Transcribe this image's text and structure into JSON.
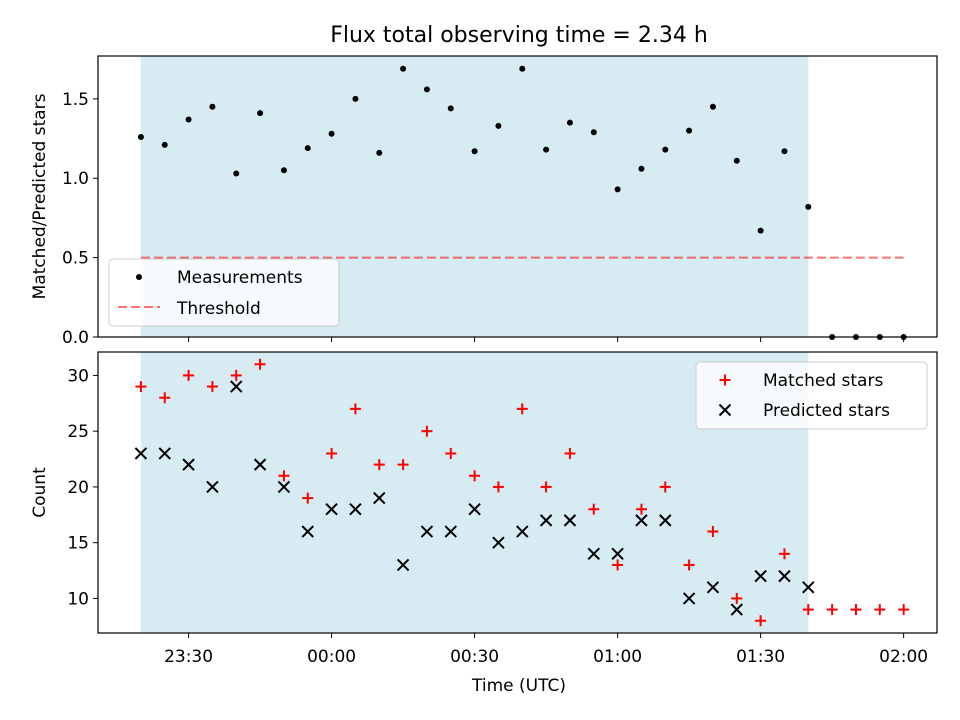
{
  "figure": {
    "title": "Flux total observing time = 2.34 h",
    "xlabel": "Time (UTC)"
  },
  "colors": {
    "shade": "#add8e6",
    "threshold": "#ff0000",
    "matched": "#ff0000",
    "predicted": "#000000",
    "measurement": "#000000"
  },
  "chart_data": [
    {
      "type": "scatter",
      "panel": "top",
      "ylabel": "Matched/Predicted stars",
      "xlim": [
        "23:11",
        "02:07"
      ],
      "ylim": [
        0,
        1.77
      ],
      "yticks": [
        0.0,
        0.5,
        1.0,
        1.5
      ],
      "ytick_labels": [
        "0.0",
        "0.5",
        "1.0",
        "1.5"
      ],
      "legend_position": "lower-left",
      "shaded_interval": [
        "23:20",
        "01:40"
      ],
      "x": [
        "23:20",
        "23:25",
        "23:30",
        "23:35",
        "23:40",
        "23:45",
        "23:50",
        "23:55",
        "00:00",
        "00:05",
        "00:10",
        "00:15",
        "00:20",
        "00:25",
        "00:30",
        "00:35",
        "00:40",
        "00:45",
        "00:50",
        "00:55",
        "01:00",
        "01:05",
        "01:10",
        "01:15",
        "01:20",
        "01:25",
        "01:30",
        "01:35",
        "01:40",
        "01:45",
        "01:50",
        "01:55",
        "02:00"
      ],
      "series": [
        {
          "name": "Measurements",
          "marker": "dot",
          "values": [
            1.26,
            1.21,
            1.37,
            1.45,
            1.03,
            1.41,
            1.05,
            1.19,
            1.28,
            1.5,
            1.16,
            1.69,
            1.56,
            1.44,
            1.17,
            1.33,
            1.69,
            1.18,
            1.35,
            1.29,
            0.93,
            1.06,
            1.18,
            1.3,
            1.45,
            1.11,
            0.67,
            1.17,
            0.82,
            0.0,
            0.0,
            0.0,
            0.0
          ]
        },
        {
          "name": "Threshold",
          "marker": "dashed-line",
          "x_range": [
            "23:20",
            "02:00"
          ],
          "value": 0.5
        }
      ]
    },
    {
      "type": "scatter",
      "panel": "bottom",
      "ylabel": "Count",
      "xlim": [
        "23:11",
        "02:07"
      ],
      "ylim": [
        6.9,
        32.1
      ],
      "yticks": [
        10,
        15,
        20,
        25,
        30
      ],
      "ytick_labels": [
        "10",
        "15",
        "20",
        "25",
        "30"
      ],
      "xticks": [
        "23:30",
        "00:00",
        "00:30",
        "01:00",
        "01:30",
        "02:00"
      ],
      "xtick_labels": [
        "23:30",
        "00:00",
        "00:30",
        "01:00",
        "01:30",
        "02:00"
      ],
      "legend_position": "top-right",
      "shaded_interval": [
        "23:20",
        "01:40"
      ],
      "series": [
        {
          "name": "Matched stars",
          "marker": "plus",
          "x": [
            "23:20",
            "23:25",
            "23:30",
            "23:35",
            "23:40",
            "23:45",
            "23:50",
            "23:55",
            "00:00",
            "00:05",
            "00:10",
            "00:15",
            "00:20",
            "00:25",
            "00:30",
            "00:35",
            "00:40",
            "00:45",
            "00:50",
            "00:55",
            "01:00",
            "01:05",
            "01:10",
            "01:15",
            "01:20",
            "01:25",
            "01:30",
            "01:35",
            "01:40",
            "01:45",
            "01:50",
            "01:55",
            "02:00"
          ],
          "values": [
            29,
            28,
            30,
            29,
            30,
            31,
            21,
            19,
            23,
            27,
            22,
            22,
            25,
            23,
            21,
            20,
            27,
            20,
            23,
            18,
            13,
            18,
            20,
            13,
            16,
            10,
            8,
            14,
            9,
            9,
            9,
            9,
            9
          ]
        },
        {
          "name": "Predicted stars",
          "marker": "x",
          "x": [
            "23:20",
            "23:25",
            "23:30",
            "23:35",
            "23:40",
            "23:45",
            "23:50",
            "23:55",
            "00:00",
            "00:05",
            "00:10",
            "00:15",
            "00:20",
            "00:25",
            "00:30",
            "00:35",
            "00:40",
            "00:45",
            "00:50",
            "00:55",
            "01:00",
            "01:05",
            "01:10",
            "01:15",
            "01:20",
            "01:25",
            "01:30",
            "01:35",
            "01:40"
          ],
          "values": [
            23,
            23,
            22,
            20,
            29,
            22,
            20,
            16,
            18,
            18,
            19,
            13,
            16,
            16,
            18,
            15,
            16,
            17,
            17,
            14,
            14,
            17,
            17,
            10,
            11,
            9,
            12,
            12,
            11
          ]
        }
      ]
    }
  ]
}
